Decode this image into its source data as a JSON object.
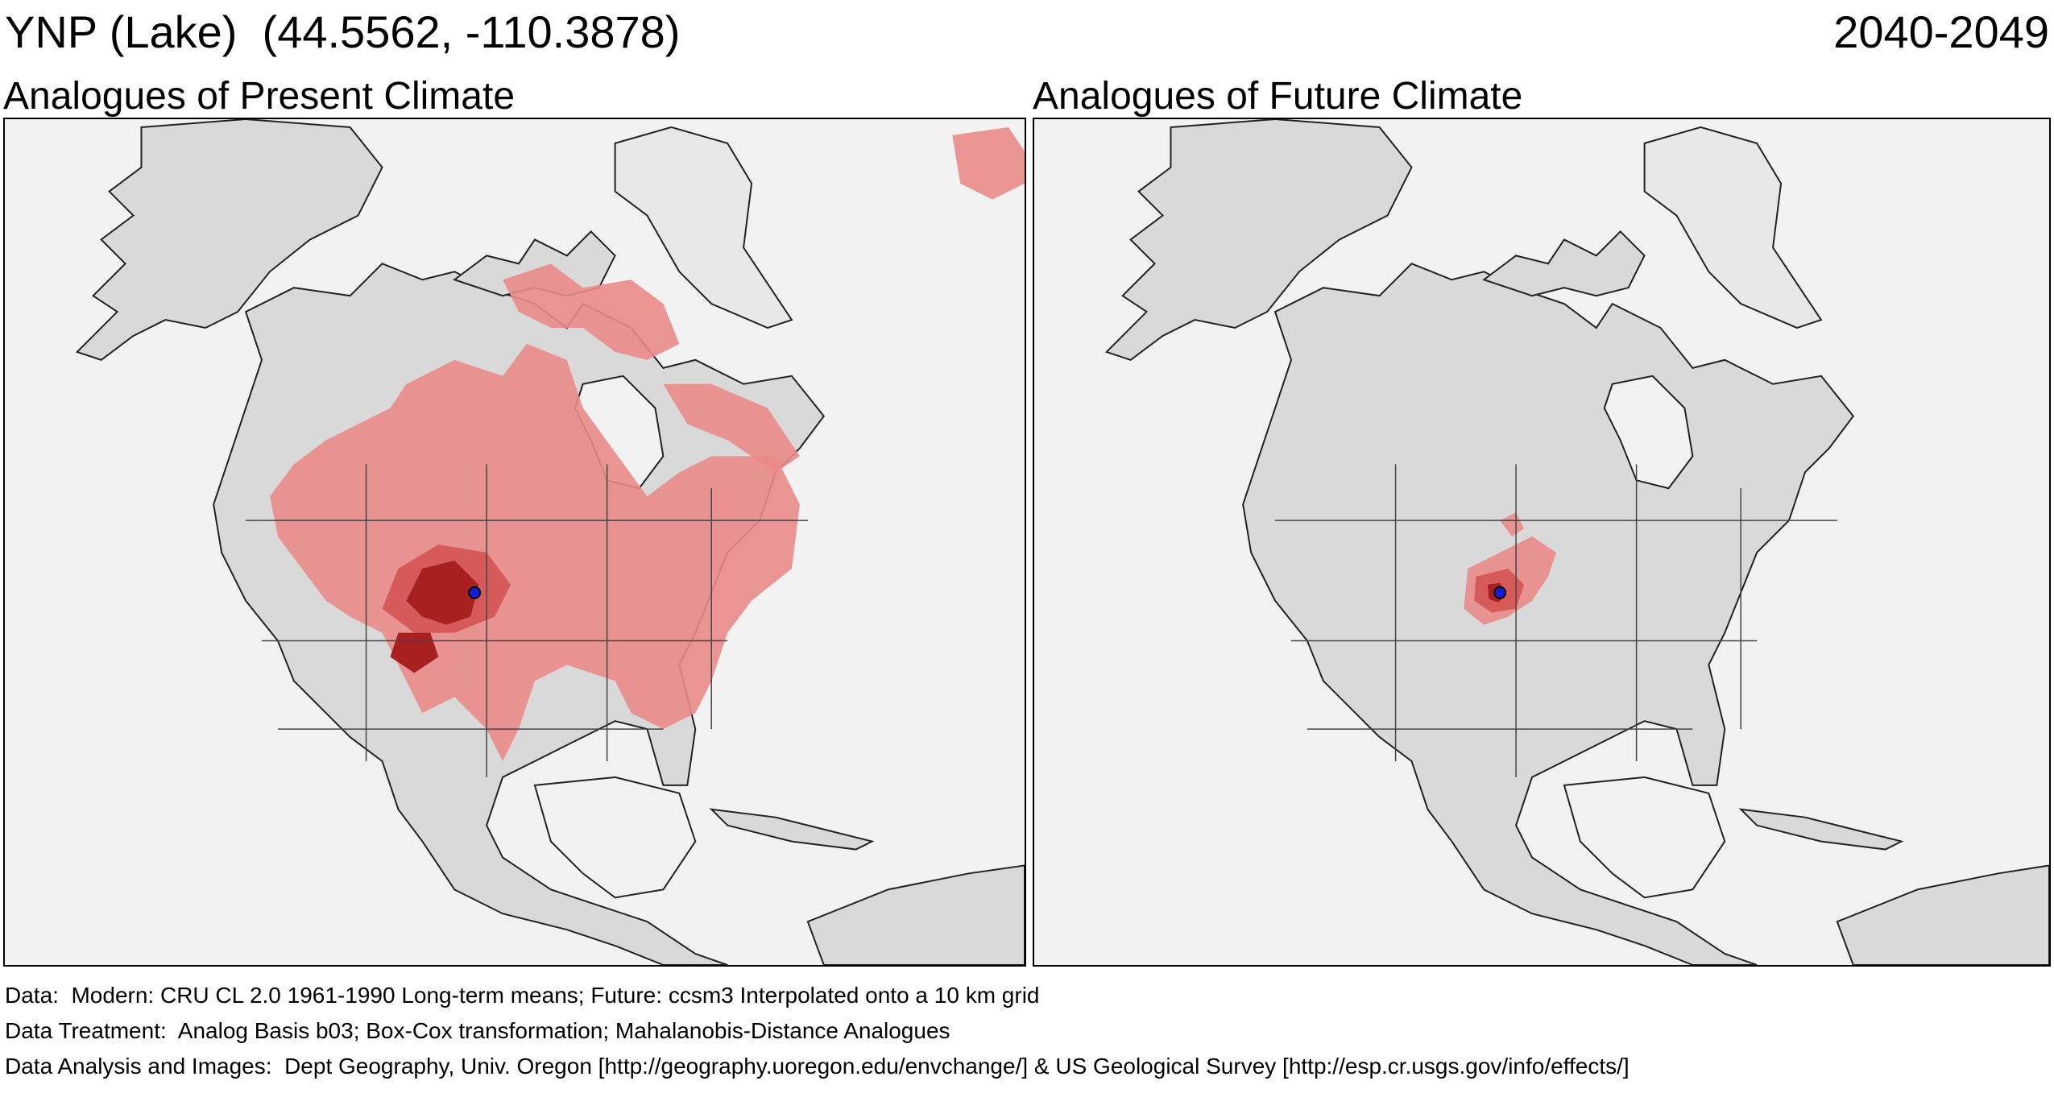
{
  "header": {
    "site_title": "YNP (Lake)  (44.5562, -110.3878)",
    "period": "2040-2049"
  },
  "panels": {
    "present": {
      "title": "Analogues of Present Climate"
    },
    "future": {
      "title": "Analogues of Future Climate"
    }
  },
  "legend_colors": {
    "ocean": "#f2f2f2",
    "land": "#d9d9d9",
    "analogue_light": "#ea8a8a",
    "analogue_medium": "#d65a5a",
    "analogue_dark": "#a82020",
    "site_marker": "#1a1adb"
  },
  "footer": {
    "data_line": "Data:  Modern: CRU CL 2.0 1961-1990 Long-term means; Future: ccsm3 Interpolated onto a 10 km grid",
    "treatment_line": "Data Treatment:  Analog Basis b03; Box-Cox transformation; Mahalanobis-Distance Analogues",
    "analysis_line": "Data Analysis and Images:  Dept Geography, Univ. Oregon [http://geography.uoregon.edu/envchange/] & US Geological Survey [http://esp.cr.usgs.gov/info/effects/]"
  }
}
